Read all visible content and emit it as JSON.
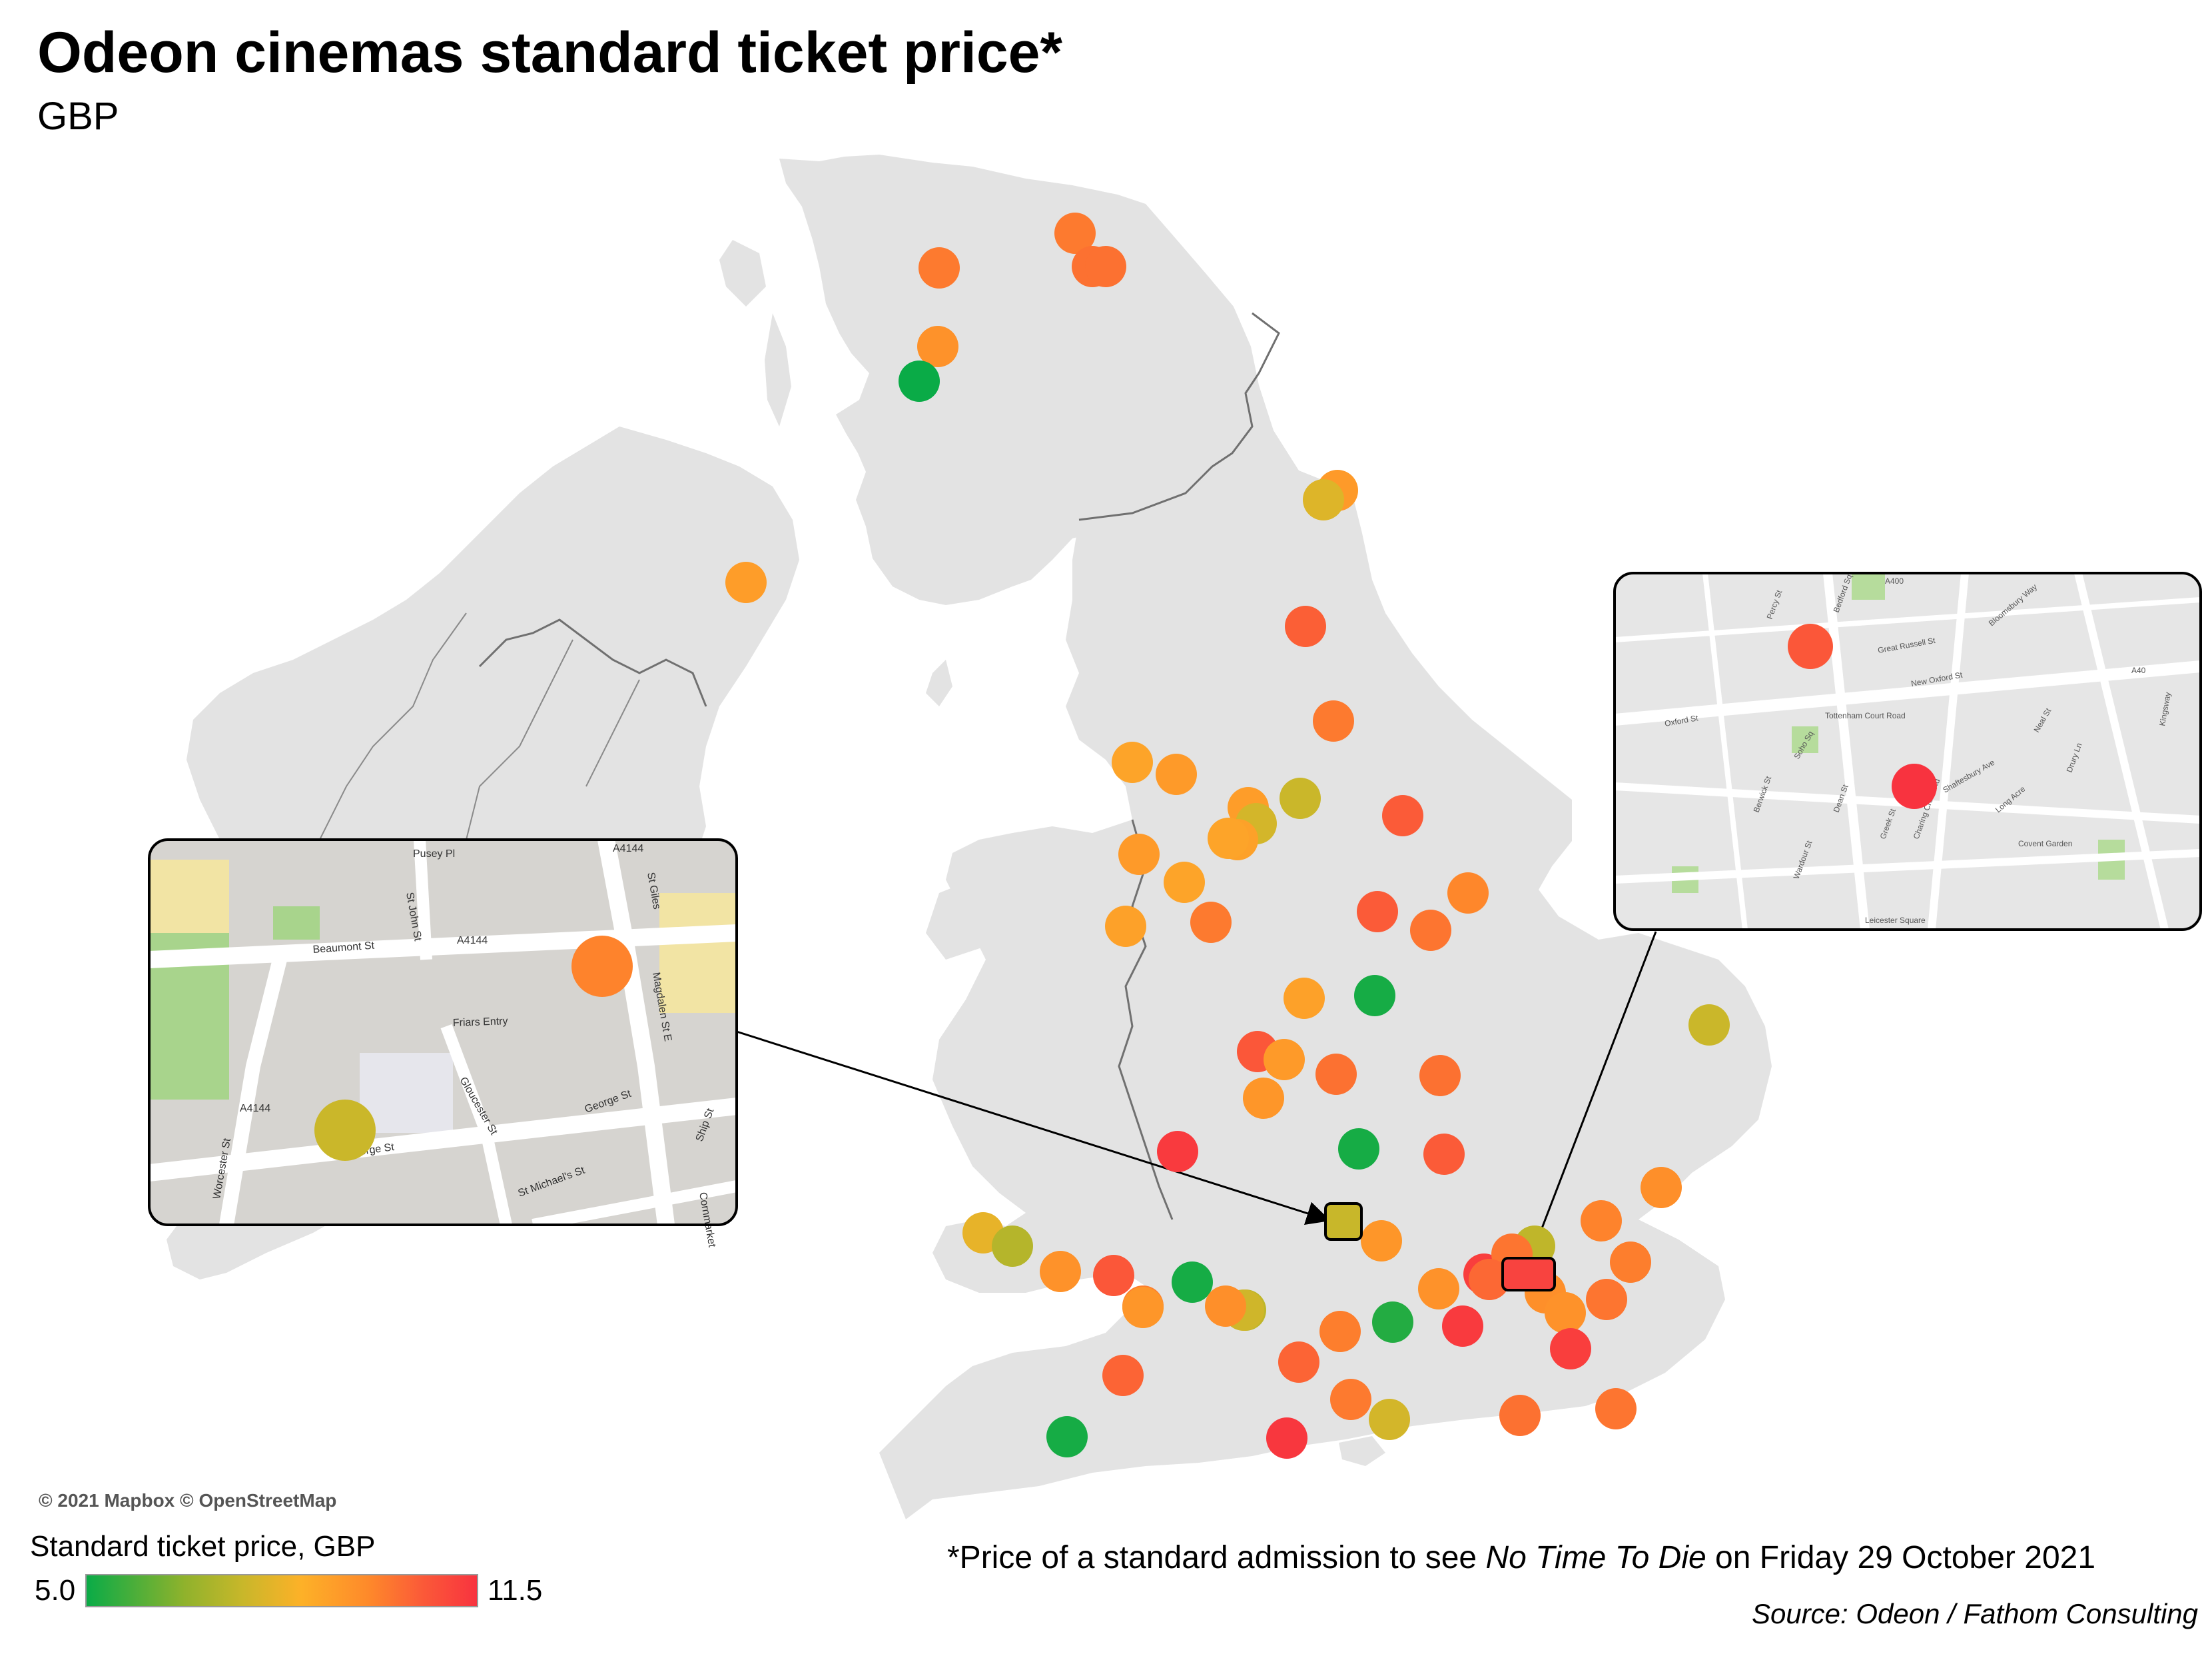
{
  "title": "Odeon cinemas standard ticket price*",
  "subtitle": "GBP",
  "attribution": "© 2021 Mapbox © OpenStreetMap",
  "legend": {
    "title": "Standard ticket price, GBP",
    "min_label": "5.0",
    "max_label": "11.5",
    "min": 5.0,
    "max": 11.5,
    "color_stops": [
      "#0aab47",
      "#8fb22c",
      "#c8b72a",
      "#fdb128",
      "#fe8a2a",
      "#fb5a38",
      "#f8333f"
    ]
  },
  "footnote": {
    "prefix": "*Price of a standard admission to see ",
    "film": "No Time To Die",
    "suffix": " on Friday 29 October 2021"
  },
  "source": "Source: Odeon / Fathom Consulting",
  "colors": {
    "land": "#e3e3e3",
    "sea": "#ffffff",
    "border": "#707070",
    "inset_frame": "#000000"
  },
  "insets": [
    {
      "id": "oxford",
      "streets": [
        "Pusey Pl",
        "St John St",
        "A4144",
        "St Giles",
        "Beaumont St",
        "A4144",
        "Magdalen St E",
        "Friars Entry",
        "Gloucester St",
        "George St",
        "George St",
        "Ship St",
        "St Michael's St",
        "Cornmarket",
        "Worcester St",
        "A4144"
      ],
      "marker_prices": [
        9.5,
        7.2
      ]
    },
    {
      "id": "london-west-end",
      "streets": [
        "Percy St",
        "Bedford Sq",
        "A400",
        "Great Russell St",
        "New Oxford St",
        "Tottenham Court Road",
        "Bloomsbury Way",
        "Charing Cross Rd",
        "Shaftesbury Ave",
        "Covent Garden",
        "Drury Ln",
        "Long Acre",
        "Kingsway",
        "Leicester Square",
        "Oxford St",
        "Soho Sq",
        "Dean St",
        "Wardour St",
        "Berwick St",
        "Greek St",
        "Neal St",
        "A40"
      ],
      "marker_prices": [
        10.5,
        11.5
      ]
    }
  ]
}
